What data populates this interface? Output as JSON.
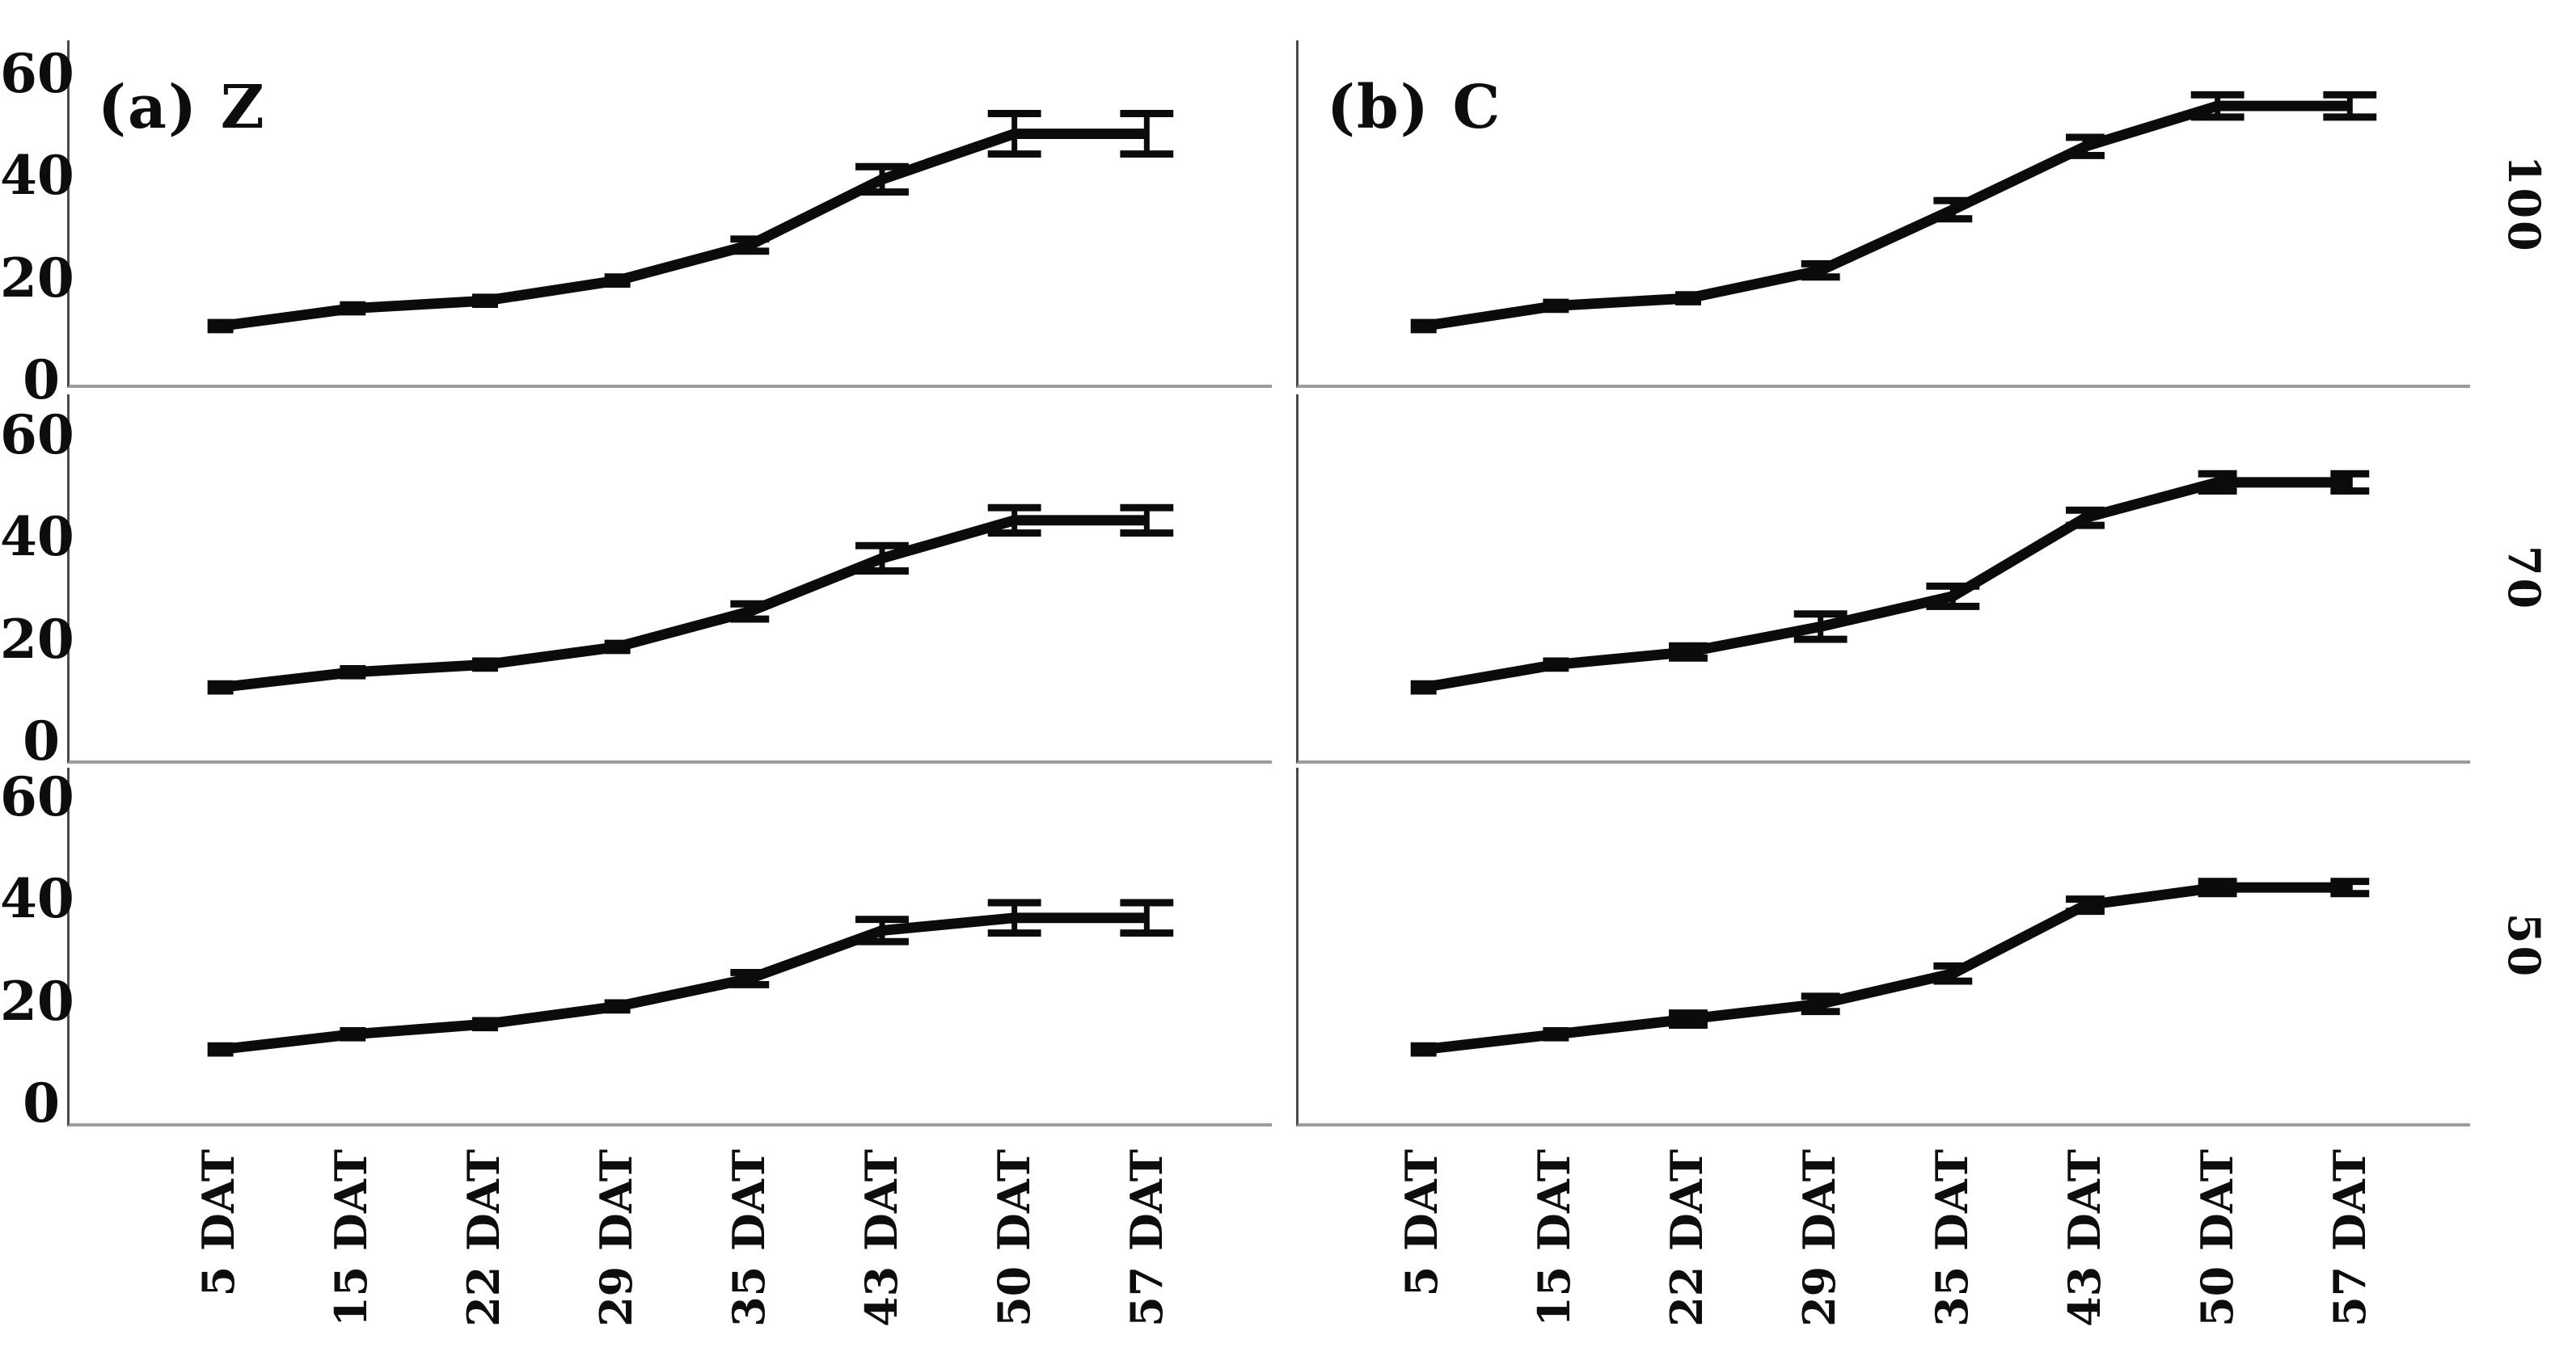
{
  "chart_data": {
    "type": "line",
    "title": "",
    "xlabel": "",
    "ylabel": "",
    "x_unit": "DAT",
    "categories": [
      "5 DAT",
      "15 DAT",
      "22 DAT",
      "29 DAT",
      "35 DAT",
      "43 DAT",
      "50 DAT",
      "57 DAT"
    ],
    "y_tick_labels": [
      "60",
      "40",
      "20",
      "0"
    ],
    "y_ticks": [
      60,
      40,
      20,
      0
    ],
    "ylim": [
      0,
      60
    ],
    "grid": "off",
    "legend": "none",
    "columns": [
      {
        "key": "Z",
        "title": "(a) Z"
      },
      {
        "key": "C",
        "title": "(b) C"
      }
    ],
    "rows": [
      "100",
      "70",
      "50"
    ],
    "panels": [
      {
        "column": "Z",
        "row": "100",
        "title": "(a) Z",
        "values": [
          10,
          13.5,
          15,
          19,
          26,
          39,
          48,
          48
        ],
        "errors": [
          0.7,
          0.7,
          0.7,
          0.7,
          1.2,
          2.5,
          4,
          4
        ]
      },
      {
        "column": "C",
        "row": "100",
        "title": "(b) C",
        "values": [
          10,
          14,
          15.5,
          21,
          33,
          45.5,
          53.5,
          53.5
        ],
        "errors": [
          0.7,
          0.7,
          0.7,
          1.3,
          1.8,
          1.8,
          2.2,
          2.2
        ]
      },
      {
        "column": "Z",
        "row": "70",
        "title": "",
        "values": [
          10,
          13,
          14.5,
          18,
          25,
          35.5,
          43,
          43
        ],
        "errors": [
          0.7,
          0.7,
          0.7,
          0.7,
          1.5,
          2.5,
          2.5,
          2.5
        ]
      },
      {
        "column": "C",
        "row": "70",
        "title": "",
        "values": [
          10,
          14.5,
          17,
          22,
          28,
          43.5,
          50.5,
          50.5
        ],
        "errors": [
          0.7,
          0.7,
          1.2,
          2.5,
          2,
          1.5,
          1.7,
          1.7
        ]
      },
      {
        "column": "Z",
        "row": "50",
        "title": "",
        "values": [
          10,
          13,
          15,
          18.5,
          24,
          33.5,
          36,
          36
        ],
        "errors": [
          0.7,
          0.7,
          0.7,
          0.7,
          1.2,
          2.2,
          3,
          3
        ]
      },
      {
        "column": "C",
        "row": "50",
        "title": "",
        "values": [
          10,
          13,
          16,
          19,
          25,
          38.5,
          42,
          42
        ],
        "errors": [
          0.7,
          0.7,
          1.2,
          1.5,
          1.5,
          1.2,
          1.2,
          1.2
        ]
      }
    ],
    "colors": {
      "line": "#0b0b0b",
      "error_bar": "#0b0b0b",
      "axis": "#4a4a4a",
      "panel_border": "#9c9c9c",
      "text": "#0d0d0d",
      "background": "#ffffff"
    }
  }
}
